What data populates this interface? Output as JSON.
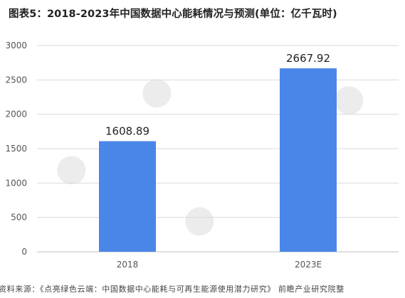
{
  "title": "图表5：2018-2023年中国数据中心能耗情况与预测(单位：亿千瓦时)",
  "source": "资料来源：《点亮绿色云端：中国数据中心能耗与可再生能源使用潜力研究》 前瞻产业研究院整",
  "watermark": "前瞻产业研究院",
  "colors": {
    "bar": "#4a86e8",
    "grid": "#d9d9d9",
    "axis_text": "#555555",
    "label_text": "#222222"
  },
  "chart_data": {
    "type": "bar",
    "categories": [
      "2018",
      "2023E"
    ],
    "values": [
      1608.89,
      2667.92
    ],
    "value_labels": [
      "1608.89",
      "2667.92"
    ],
    "y_ticks": [
      "0",
      "500",
      "1000",
      "1500",
      "2000",
      "2500",
      "3000"
    ],
    "ylim": [
      0,
      3000
    ],
    "grid": true,
    "title": "图表5：2018-2023年中国数据中心能耗情况与预测(单位：亿千瓦时)",
    "xlabel": "",
    "ylabel": ""
  }
}
